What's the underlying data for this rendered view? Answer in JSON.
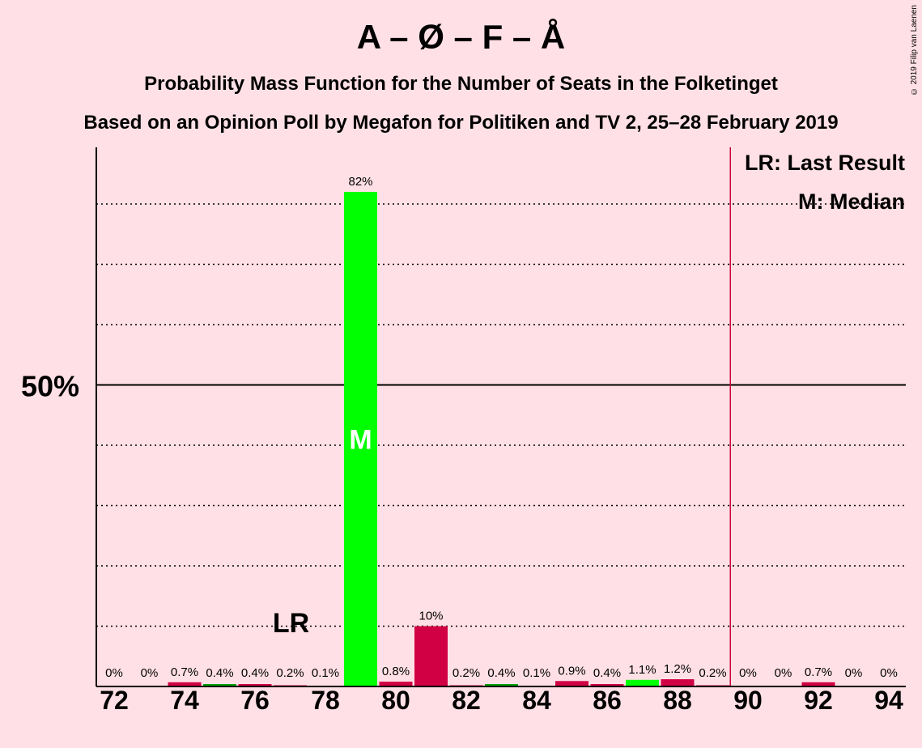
{
  "title": "A – Ø – F – Å",
  "subtitle1": "Probability Mass Function for the Number of Seats in the Folketinget",
  "subtitle2": "Based on an Opinion Poll by Megafon for Politiken and TV 2, 25–28 February 2019",
  "copyright": "© 2019 Filip van Laenen",
  "legend": {
    "lr": "LR: Last Result",
    "median": "M: Median"
  },
  "chart_data": {
    "type": "bar",
    "x": [
      72,
      73,
      74,
      75,
      76,
      77,
      78,
      79,
      80,
      81,
      82,
      83,
      84,
      85,
      86,
      87,
      88,
      89,
      90,
      91,
      92,
      93,
      94
    ],
    "values": [
      0,
      0,
      0.7,
      0.4,
      0.4,
      0.2,
      0.1,
      82,
      0.8,
      10,
      0.2,
      0.4,
      0.1,
      0.9,
      0.4,
      1.1,
      1.2,
      0.2,
      0,
      0,
      0.7,
      0,
      0
    ],
    "labels": [
      "0%",
      "0%",
      "0.7%",
      "0.4%",
      "0.4%",
      "0.2%",
      "0.1%",
      "82%",
      "0.8%",
      "10%",
      "0.2%",
      "0.4%",
      "0.1%",
      "0.9%",
      "0.4%",
      "1.1%",
      "1.2%",
      "0.2%",
      "0%",
      "0%",
      "0.7%",
      "0%",
      "0%"
    ],
    "colors": [
      "#D10044",
      "#D10044",
      "#D10044",
      "#00A000",
      "#D10044",
      "#D10044",
      "#D10044",
      "#00FF00",
      "#D10044",
      "#D10044",
      "#D10044",
      "#00A000",
      "#D10044",
      "#D10044",
      "#D10044",
      "#00FF00",
      "#D10044",
      "#D10044",
      "#D10044",
      "#D10044",
      "#D10044",
      "#D10044",
      "#D10044"
    ],
    "x_ticks": [
      "72",
      "74",
      "76",
      "78",
      "80",
      "82",
      "84",
      "86",
      "88",
      "90",
      "92",
      "94"
    ],
    "y_tick_label": "50%",
    "ylim": [
      0,
      90
    ],
    "gridlines": [
      10,
      20,
      30,
      40,
      60,
      70,
      80
    ],
    "majority_line": 50,
    "majority_seat": 89.5,
    "last_result": 77,
    "last_result_label": "LR",
    "median": 79,
    "median_label": "M"
  }
}
